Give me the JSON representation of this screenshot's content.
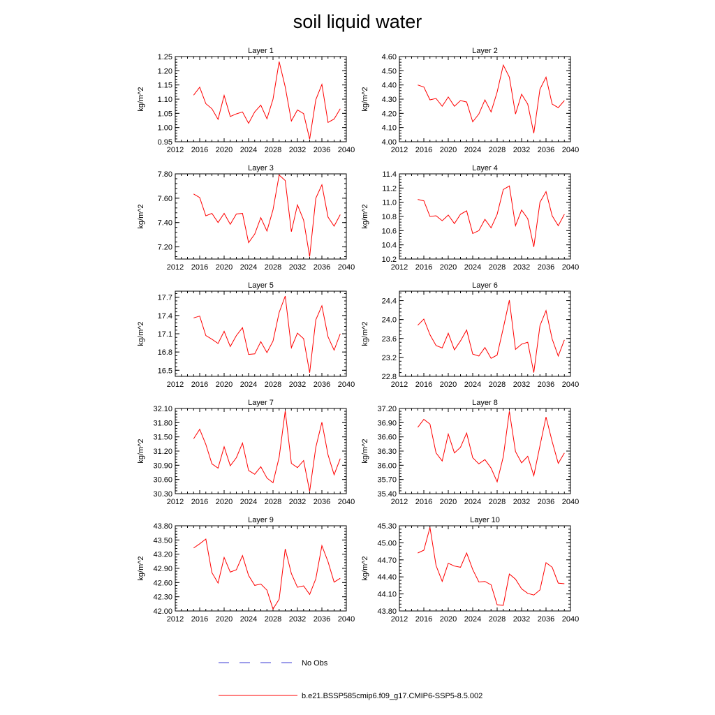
{
  "title": "soil liquid water",
  "colors": {
    "model": "#ff0000",
    "obs": "#3b3bd6",
    "axis": "#000000"
  },
  "legend": {
    "placement": "bottom-center",
    "obs_label": "No Obs",
    "model_label": "b.e21.BSSP585cmip6.f09_g17.CMIP6-SSP5-8.5.002"
  },
  "chart_data": [
    {
      "type": "line",
      "title": "Layer 1",
      "ylabel": "kg/m^2",
      "xlim": [
        2012,
        2040
      ],
      "xticks": [
        "2012",
        "2016",
        "2020",
        "2024",
        "2028",
        "2032",
        "2036",
        "2040"
      ],
      "ylim": [
        0.95,
        1.25
      ],
      "yticks": [
        "0.95",
        "1.00",
        "1.05",
        "1.10",
        "1.15",
        "1.20",
        "1.25"
      ],
      "series": [
        {
          "name": "b.e21.BSSP585cmip6.f09_g17.CMIP6-SSP5-8.5.002",
          "x": [
            2015,
            2016,
            2017,
            2018,
            2019,
            2020,
            2021,
            2022,
            2023,
            2024,
            2025,
            2026,
            2027,
            2028,
            2029,
            2030,
            2031,
            2032,
            2033,
            2034,
            2035,
            2036,
            2037,
            2038,
            2039
          ],
          "y": [
            1.114,
            1.142,
            1.084,
            1.066,
            1.029,
            1.113,
            1.039,
            1.048,
            1.055,
            1.015,
            1.055,
            1.079,
            1.031,
            1.1,
            1.232,
            1.143,
            1.023,
            1.062,
            1.049,
            0.959,
            1.098,
            1.152,
            1.018,
            1.03,
            1.066
          ]
        }
      ]
    },
    {
      "type": "line",
      "title": "Layer 2",
      "ylabel": "kg/m^2",
      "xlim": [
        2012,
        2040
      ],
      "xticks": [
        "2012",
        "2016",
        "2020",
        "2024",
        "2028",
        "2032",
        "2036",
        "2040"
      ],
      "ylim": [
        4.0,
        4.6
      ],
      "yticks": [
        "4.00",
        "4.10",
        "4.20",
        "4.30",
        "4.40",
        "4.50",
        "4.60"
      ],
      "series": [
        {
          "name": "b.e21.BSSP585cmip6.f09_g17.CMIP6-SSP5-8.5.002",
          "x": [
            2015,
            2016,
            2017,
            2018,
            2019,
            2020,
            2021,
            2022,
            2023,
            2024,
            2025,
            2026,
            2027,
            2028,
            2029,
            2030,
            2031,
            2032,
            2033,
            2034,
            2035,
            2036,
            2037,
            2038,
            2039
          ],
          "y": [
            4.4,
            4.385,
            4.295,
            4.305,
            4.25,
            4.315,
            4.25,
            4.29,
            4.28,
            4.14,
            4.195,
            4.295,
            4.21,
            4.35,
            4.54,
            4.455,
            4.195,
            4.335,
            4.265,
            4.06,
            4.37,
            4.455,
            4.265,
            4.24,
            4.29
          ]
        }
      ]
    },
    {
      "type": "line",
      "title": "Layer 3",
      "ylabel": "kg/m^2",
      "xlim": [
        2012,
        2040
      ],
      "xticks": [
        "2012",
        "2016",
        "2020",
        "2024",
        "2028",
        "2032",
        "2036",
        "2040"
      ],
      "ylim": [
        7.1,
        7.8
      ],
      "yticks": [
        "7.20",
        "7.40",
        "7.60",
        "7.80"
      ],
      "series": [
        {
          "name": "b.e21.BSSP585cmip6.f09_g17.CMIP6-SSP5-8.5.002",
          "x": [
            2015,
            2016,
            2017,
            2018,
            2019,
            2020,
            2021,
            2022,
            2023,
            2024,
            2025,
            2026,
            2027,
            2028,
            2029,
            2030,
            2031,
            2032,
            2033,
            2034,
            2035,
            2036,
            2037,
            2038,
            2039
          ],
          "y": [
            7.635,
            7.605,
            7.455,
            7.475,
            7.4,
            7.475,
            7.385,
            7.47,
            7.475,
            7.235,
            7.305,
            7.44,
            7.33,
            7.505,
            7.79,
            7.745,
            7.325,
            7.545,
            7.42,
            7.12,
            7.6,
            7.71,
            7.445,
            7.37,
            7.465
          ]
        }
      ]
    },
    {
      "type": "line",
      "title": "Layer 4",
      "ylabel": "kg/m^2",
      "xlim": [
        2012,
        2040
      ],
      "xticks": [
        "2012",
        "2016",
        "2020",
        "2024",
        "2028",
        "2032",
        "2036",
        "2040"
      ],
      "ylim": [
        10.2,
        11.4
      ],
      "yticks": [
        "10.2",
        "10.4",
        "10.6",
        "10.8",
        "11.0",
        "11.2",
        "11.4"
      ],
      "series": [
        {
          "name": "b.e21.BSSP585cmip6.f09_g17.CMIP6-SSP5-8.5.002",
          "x": [
            2015,
            2016,
            2017,
            2018,
            2019,
            2020,
            2021,
            2022,
            2023,
            2024,
            2025,
            2026,
            2027,
            2028,
            2029,
            2030,
            2031,
            2032,
            2033,
            2034,
            2035,
            2036,
            2037,
            2038,
            2039
          ],
          "y": [
            11.04,
            11.02,
            10.8,
            10.81,
            10.74,
            10.82,
            10.7,
            10.83,
            10.88,
            10.56,
            10.6,
            10.76,
            10.64,
            10.83,
            11.18,
            11.23,
            10.67,
            10.89,
            10.77,
            10.37,
            11.0,
            11.15,
            10.81,
            10.67,
            10.83
          ]
        }
      ]
    },
    {
      "type": "line",
      "title": "Layer 5",
      "ylabel": "kg/m^2",
      "xlim": [
        2012,
        2040
      ],
      "xticks": [
        "2012",
        "2016",
        "2020",
        "2024",
        "2028",
        "2032",
        "2036",
        "2040"
      ],
      "ylim": [
        16.4,
        17.8
      ],
      "yticks": [
        "16.5",
        "16.8",
        "17.1",
        "17.4",
        "17.7"
      ],
      "series": [
        {
          "name": "b.e21.BSSP585cmip6.f09_g17.CMIP6-SSP5-8.5.002",
          "x": [
            2015,
            2016,
            2017,
            2018,
            2019,
            2020,
            2021,
            2022,
            2023,
            2024,
            2025,
            2026,
            2027,
            2028,
            2029,
            2030,
            2031,
            2032,
            2033,
            2034,
            2035,
            2036,
            2037,
            2038,
            2039
          ],
          "y": [
            17.36,
            17.39,
            17.07,
            17.01,
            16.94,
            17.14,
            16.89,
            17.07,
            17.2,
            16.76,
            16.77,
            16.97,
            16.79,
            16.98,
            17.45,
            17.72,
            16.87,
            17.11,
            17.02,
            16.46,
            17.33,
            17.56,
            17.05,
            16.83,
            17.1
          ]
        }
      ]
    },
    {
      "type": "line",
      "title": "Layer 6",
      "ylabel": "kg/m^2",
      "xlim": [
        2012,
        2040
      ],
      "xticks": [
        "2012",
        "2016",
        "2020",
        "2024",
        "2028",
        "2032",
        "2036",
        "2040"
      ],
      "ylim": [
        22.8,
        24.6
      ],
      "yticks": [
        "22.8",
        "23.2",
        "23.6",
        "24.0",
        "24.4"
      ],
      "series": [
        {
          "name": "b.e21.BSSP585cmip6.f09_g17.CMIP6-SSP5-8.5.002",
          "x": [
            2015,
            2016,
            2017,
            2018,
            2019,
            2020,
            2021,
            2022,
            2023,
            2024,
            2025,
            2026,
            2027,
            2028,
            2029,
            2030,
            2031,
            2032,
            2033,
            2034,
            2035,
            2036,
            2037,
            2038,
            2039
          ],
          "y": [
            23.88,
            24.01,
            23.68,
            23.45,
            23.4,
            23.71,
            23.36,
            23.55,
            23.78,
            23.27,
            23.23,
            23.41,
            23.18,
            23.25,
            23.82,
            24.41,
            23.37,
            23.48,
            23.52,
            22.88,
            23.87,
            24.19,
            23.59,
            23.23,
            23.57
          ]
        }
      ]
    },
    {
      "type": "line",
      "title": "Layer 7",
      "ylabel": "kg/m^2",
      "xlim": [
        2012,
        2040
      ],
      "xticks": [
        "2012",
        "2016",
        "2020",
        "2024",
        "2028",
        "2032",
        "2036",
        "2040"
      ],
      "ylim": [
        30.3,
        32.1
      ],
      "yticks": [
        "30.30",
        "30.60",
        "30.90",
        "31.20",
        "31.50",
        "31.80",
        "32.10"
      ],
      "series": [
        {
          "name": "b.e21.BSSP585cmip6.f09_g17.CMIP6-SSP5-8.5.002",
          "x": [
            2015,
            2016,
            2017,
            2018,
            2019,
            2020,
            2021,
            2022,
            2023,
            2024,
            2025,
            2026,
            2027,
            2028,
            2029,
            2030,
            2031,
            2032,
            2033,
            2034,
            2035,
            2036,
            2037,
            2038,
            2039
          ],
          "y": [
            31.46,
            31.66,
            31.34,
            30.93,
            30.84,
            31.29,
            30.89,
            31.06,
            31.37,
            30.79,
            30.71,
            30.87,
            30.63,
            30.53,
            31.07,
            32.05,
            30.94,
            30.85,
            31.0,
            30.35,
            31.28,
            31.81,
            31.12,
            30.7,
            31.04
          ]
        }
      ]
    },
    {
      "type": "line",
      "title": "Layer 8",
      "ylabel": "kg/m^2",
      "xlim": [
        2012,
        2040
      ],
      "xticks": [
        "2012",
        "2016",
        "2020",
        "2024",
        "2028",
        "2032",
        "2036",
        "2040"
      ],
      "ylim": [
        35.4,
        37.2
      ],
      "yticks": [
        "35.40",
        "35.70",
        "36.00",
        "36.30",
        "36.60",
        "36.90",
        "37.20"
      ],
      "series": [
        {
          "name": "b.e21.BSSP585cmip6.f09_g17.CMIP6-SSP5-8.5.002",
          "x": [
            2015,
            2016,
            2017,
            2018,
            2019,
            2020,
            2021,
            2022,
            2023,
            2024,
            2025,
            2026,
            2027,
            2028,
            2029,
            2030,
            2031,
            2032,
            2033,
            2034,
            2035,
            2036,
            2037,
            2038,
            2039
          ],
          "y": [
            36.8,
            36.97,
            36.87,
            36.26,
            36.09,
            36.66,
            36.26,
            36.38,
            36.68,
            36.16,
            36.03,
            36.12,
            35.94,
            35.65,
            36.18,
            37.14,
            36.29,
            36.05,
            36.19,
            35.78,
            36.41,
            37.02,
            36.5,
            36.04,
            36.26
          ]
        }
      ]
    },
    {
      "type": "line",
      "title": "Layer 9",
      "ylabel": "kg/m^2",
      "xlim": [
        2012,
        2040
      ],
      "xticks": [
        "2012",
        "2016",
        "2020",
        "2024",
        "2028",
        "2032",
        "2036",
        "2040"
      ],
      "ylim": [
        42.0,
        43.8
      ],
      "yticks": [
        "42.00",
        "42.30",
        "42.60",
        "42.90",
        "43.20",
        "43.50",
        "43.80"
      ],
      "series": [
        {
          "name": "b.e21.BSSP585cmip6.f09_g17.CMIP6-SSP5-8.5.002",
          "x": [
            2015,
            2016,
            2017,
            2018,
            2019,
            2020,
            2021,
            2022,
            2023,
            2024,
            2025,
            2026,
            2027,
            2028,
            2029,
            2030,
            2031,
            2032,
            2033,
            2034,
            2035,
            2036,
            2037,
            2038,
            2039
          ],
          "y": [
            43.33,
            43.42,
            43.52,
            42.81,
            42.59,
            43.13,
            42.82,
            42.87,
            43.17,
            42.75,
            42.54,
            42.57,
            42.44,
            42.04,
            42.25,
            43.31,
            42.79,
            42.5,
            42.53,
            42.35,
            42.68,
            43.38,
            43.04,
            42.61,
            42.69
          ]
        }
      ]
    },
    {
      "type": "line",
      "title": "Layer 10",
      "ylabel": "kg/m^2",
      "xlim": [
        2012,
        2040
      ],
      "xticks": [
        "2012",
        "2016",
        "2020",
        "2024",
        "2028",
        "2032",
        "2036",
        "2040"
      ],
      "ylim": [
        43.8,
        45.3
      ],
      "yticks": [
        "43.80",
        "44.10",
        "44.40",
        "44.70",
        "45.00",
        "45.30"
      ],
      "series": [
        {
          "name": "b.e21.BSSP585cmip6.f09_g17.CMIP6-SSP5-8.5.002",
          "x": [
            2015,
            2016,
            2017,
            2018,
            2019,
            2020,
            2021,
            2022,
            2023,
            2024,
            2025,
            2026,
            2027,
            2028,
            2029,
            2030,
            2031,
            2032,
            2033,
            2034,
            2035,
            2036,
            2037,
            2038,
            2039
          ],
          "y": [
            44.82,
            44.87,
            45.27,
            44.6,
            44.32,
            44.64,
            44.59,
            44.57,
            44.82,
            44.53,
            44.31,
            44.32,
            44.26,
            43.91,
            43.9,
            44.45,
            44.36,
            44.19,
            44.11,
            44.08,
            44.17,
            44.65,
            44.57,
            44.29,
            44.28
          ]
        }
      ]
    }
  ]
}
